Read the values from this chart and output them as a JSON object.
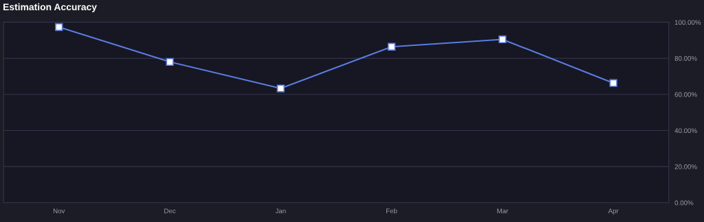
{
  "chart_data": {
    "type": "line",
    "title": "Estimation Accuracy",
    "categories": [
      "Nov",
      "Dec",
      "Jan",
      "Feb",
      "Mar",
      "Apr"
    ],
    "series": [
      {
        "color": "#5a7ce2",
        "values": [
          97.3,
          78.0,
          63.3,
          86.4,
          90.5,
          66.3
        ]
      }
    ],
    "ylim": [
      0,
      100
    ],
    "yticks": [
      {
        "value": 0,
        "label": "0.00%"
      },
      {
        "value": 20,
        "label": "20.00%"
      },
      {
        "value": 40,
        "label": "40.00%"
      },
      {
        "value": 60,
        "label": "60.00%"
      },
      {
        "value": 80,
        "label": "80.00%"
      },
      {
        "value": 100,
        "label": "100.00%"
      }
    ],
    "grid": "y",
    "marker": "square",
    "line_style": "solid"
  }
}
